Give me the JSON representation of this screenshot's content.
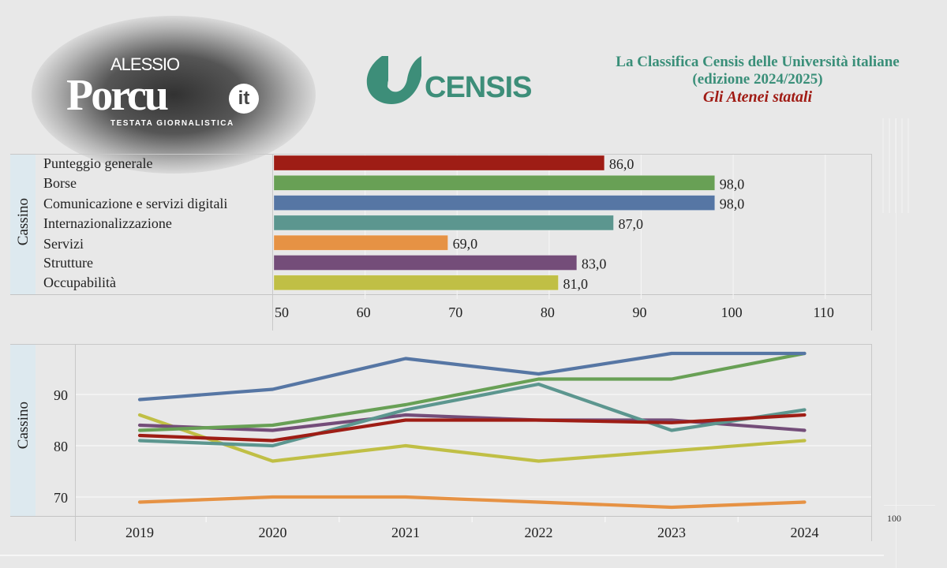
{
  "branding": {
    "publisher_small": "ALESSIO",
    "publisher_big": "Porcu",
    "publisher_badge": "it",
    "publisher_tagline": "TESTATA GIORNALISTICA",
    "partner_logo_text": "CENSIS"
  },
  "header": {
    "title_line1": "La Classifica Censis delle Università italiane",
    "title_line2": "(edizione 2024/2025)",
    "subtitle": "Gli Atenei statali"
  },
  "colors": {
    "title_green": "#3a8f79",
    "subtitle_red": "#a01b14",
    "panel_label_bg": "#dde9ef",
    "background": "#e8e8e8"
  },
  "chart_data": [
    {
      "type": "bar",
      "orientation": "horizontal",
      "panel_label": "Cassino",
      "categories": [
        "Punteggio generale",
        "Borse",
        "Comunicazione e servizi digitali",
        "Internazionalizzazione",
        "Servizi",
        "Strutture",
        "Occupabilità"
      ],
      "values": [
        86.0,
        98.0,
        98.0,
        87.0,
        69.0,
        83.0,
        81.0
      ],
      "value_labels": [
        "86,0",
        "98,0",
        "98,0",
        "87,0",
        "69,0",
        "83,0",
        "81,0"
      ],
      "colors": [
        "#9e1d15",
        "#68a055",
        "#5676a4",
        "#5c968f",
        "#e69244",
        "#744d79",
        "#c0bf45"
      ],
      "xlim": [
        50,
        115
      ],
      "xticks": [
        "50",
        "60",
        "70",
        "80",
        "90",
        "100",
        "110"
      ],
      "xtick_values": [
        50,
        60,
        70,
        80,
        90,
        100,
        110
      ],
      "grid": true
    },
    {
      "type": "line",
      "panel_label": "Cassino",
      "x": [
        "2019",
        "2020",
        "2021",
        "2022",
        "2023",
        "2024"
      ],
      "ylim": [
        65.5,
        99.5
      ],
      "yticks": [
        "70",
        "80",
        "90"
      ],
      "ytick_values": [
        70,
        80,
        90
      ],
      "grid": true,
      "series": [
        {
          "name": "Comunicazione e servizi digitali",
          "color": "#5676a4",
          "values": [
            89,
            91,
            97,
            94,
            98,
            98
          ]
        },
        {
          "name": "Borse",
          "color": "#68a055",
          "values": [
            83,
            84,
            88,
            93,
            93,
            98
          ]
        },
        {
          "name": "Internazionalizzazione",
          "color": "#5c968f",
          "values": [
            81,
            80,
            87,
            92,
            83,
            87
          ]
        },
        {
          "name": "Strutture",
          "color": "#744d79",
          "values": [
            84,
            83,
            86,
            85,
            85,
            83
          ]
        },
        {
          "name": "Occupabilità",
          "color": "#c0bf45",
          "values": [
            86,
            77,
            80,
            77,
            79,
            81
          ]
        },
        {
          "name": "Punteggio generale",
          "color": "#9e1d15",
          "values": [
            82,
            81,
            85,
            85,
            84.5,
            86
          ]
        },
        {
          "name": "Servizi",
          "color": "#e69244",
          "values": [
            69,
            70,
            70,
            69,
            68,
            69
          ]
        }
      ]
    }
  ],
  "ghost_axis": {
    "tick_label": "100"
  }
}
